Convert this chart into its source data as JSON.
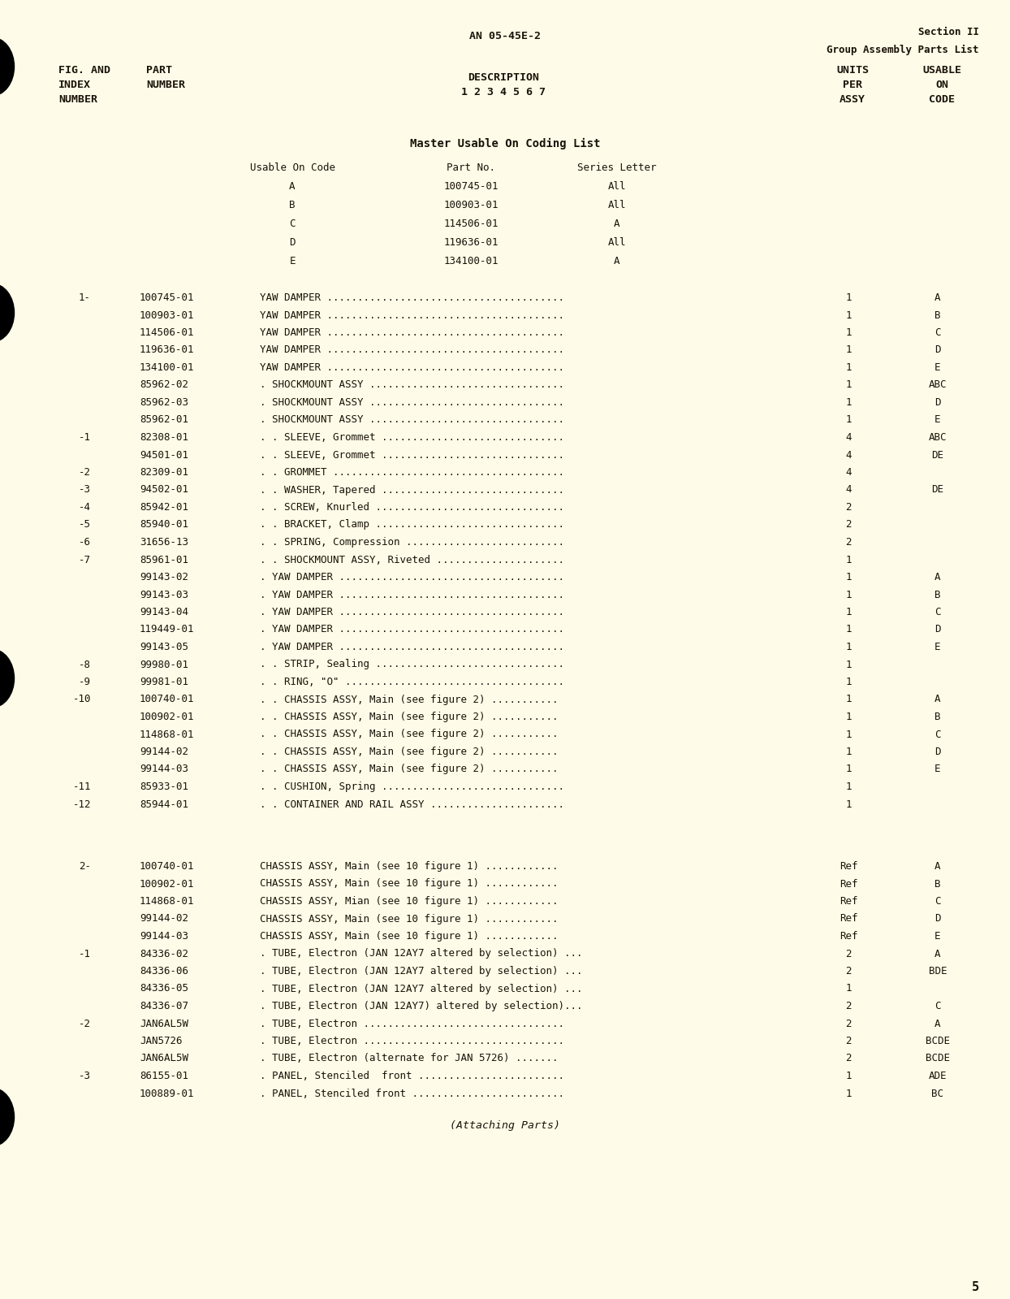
{
  "bg_color": "#FEFCE8",
  "text_color": "#1a1208",
  "header_center": "AN 05-45E-2",
  "header_right_line1": "Section II",
  "header_right_line2": "Group Assembly Parts List",
  "master_coding_title": "Master Usable On Coding List",
  "master_coding_headers": [
    "Usable On Code",
    "Part No.",
    "Series Letter"
  ],
  "master_coding_rows": [
    [
      "A",
      "100745-01",
      "All"
    ],
    [
      "B",
      "100903-01",
      "All"
    ],
    [
      "C",
      "114506-01",
      "A"
    ],
    [
      "D",
      "119636-01",
      "All"
    ],
    [
      "E",
      "134100-01",
      "A"
    ]
  ],
  "parts_rows": [
    [
      "1-",
      "100745-01",
      "YAW DAMPER .......................................",
      "1",
      "A"
    ],
    [
      "",
      "100903-01",
      "YAW DAMPER .......................................",
      "1",
      "B"
    ],
    [
      "",
      "114506-01",
      "YAW DAMPER .......................................",
      "1",
      "C"
    ],
    [
      "",
      "119636-01",
      "YAW DAMPER .......................................",
      "1",
      "D"
    ],
    [
      "",
      "134100-01",
      "YAW DAMPER .......................................",
      "1",
      "E"
    ],
    [
      "",
      "85962-02",
      ". SHOCKMOUNT ASSY ................................",
      "1",
      "ABC"
    ],
    [
      "",
      "85962-03",
      ". SHOCKMOUNT ASSY ................................",
      "1",
      "D"
    ],
    [
      "",
      "85962-01",
      ". SHOCKMOUNT ASSY ................................",
      "1",
      "E"
    ],
    [
      "-1",
      "82308-01",
      ". . SLEEVE, Grommet ..............................",
      "4",
      "ABC"
    ],
    [
      "",
      "94501-01",
      ". . SLEEVE, Grommet ..............................",
      "4",
      "DE"
    ],
    [
      "-2",
      "82309-01",
      ". . GROMMET ......................................",
      "4",
      ""
    ],
    [
      "-3",
      "94502-01",
      ". . WASHER, Tapered ..............................",
      "4",
      "DE"
    ],
    [
      "-4",
      "85942-01",
      ". . SCREW, Knurled ...............................",
      "2",
      ""
    ],
    [
      "-5",
      "85940-01",
      ". . BRACKET, Clamp ...............................",
      "2",
      ""
    ],
    [
      "-6",
      "31656-13",
      ". . SPRING, Compression ..........................",
      "2",
      ""
    ],
    [
      "-7",
      "85961-01",
      ". . SHOCKMOUNT ASSY, Riveted .....................",
      "1",
      ""
    ],
    [
      "",
      "99143-02",
      ". YAW DAMPER .....................................",
      "1",
      "A"
    ],
    [
      "",
      "99143-03",
      ". YAW DAMPER .....................................",
      "1",
      "B"
    ],
    [
      "",
      "99143-04",
      ". YAW DAMPER .....................................",
      "1",
      "C"
    ],
    [
      "",
      "119449-01",
      ". YAW DAMPER .....................................",
      "1",
      "D"
    ],
    [
      "",
      "99143-05",
      ". YAW DAMPER .....................................",
      "1",
      "E"
    ],
    [
      "-8",
      "99980-01",
      ". . STRIP, Sealing ...............................",
      "1",
      ""
    ],
    [
      "-9",
      "99981-01",
      ". . RING, \"O\" ....................................",
      "1",
      ""
    ],
    [
      "-10",
      "100740-01",
      ". . CHASSIS ASSY, Main (see figure 2) ...........",
      "1",
      "A"
    ],
    [
      "",
      "100902-01",
      ". . CHASSIS ASSY, Main (see figure 2) ...........",
      "1",
      "B"
    ],
    [
      "",
      "114868-01",
      ". . CHASSIS ASSY, Main (see figure 2) ...........",
      "1",
      "C"
    ],
    [
      "",
      "99144-02",
      ". . CHASSIS ASSY, Main (see figure 2) ...........",
      "1",
      "D"
    ],
    [
      "",
      "99144-03",
      ". . CHASSIS ASSY, Main (see figure 2) ...........",
      "1",
      "E"
    ],
    [
      "-11",
      "85933-01",
      ". . CUSHION, Spring ..............................",
      "1",
      ""
    ],
    [
      "-12",
      "85944-01",
      ". . CONTAINER AND RAIL ASSY ......................",
      "1",
      ""
    ]
  ],
  "parts_rows2": [
    [
      "2-",
      "100740-01",
      "CHASSIS ASSY, Main (see 10 figure 1) ............",
      "Ref",
      "A"
    ],
    [
      "",
      "100902-01",
      "CHASSIS ASSY, Main (see 10 figure 1) ............",
      "Ref",
      "B"
    ],
    [
      "",
      "114868-01",
      "CHASSIS ASSY, Mian (see 10 figure 1) ............",
      "Ref",
      "C"
    ],
    [
      "",
      "99144-02",
      "CHASSIS ASSY, Main (see 10 figure 1) ............",
      "Ref",
      "D"
    ],
    [
      "",
      "99144-03",
      "CHASSIS ASSY, Main (see 10 figure 1) ............",
      "Ref",
      "E"
    ],
    [
      "-1",
      "84336-02",
      ". TUBE, Electron (JAN 12AY7 altered by selection) ...",
      "2",
      "A"
    ],
    [
      "",
      "84336-06",
      ". TUBE, Electron (JAN 12AY7 altered by selection) ...",
      "2",
      "BDE"
    ],
    [
      "",
      "84336-05",
      ". TUBE, Electron (JAN 12AY7 altered by selection) ...",
      "1",
      ""
    ],
    [
      "",
      "84336-07",
      ". TUBE, Electron (JAN 12AY7) altered by selection)...",
      "2",
      "C"
    ],
    [
      "-2",
      "JAN6AL5W",
      ". TUBE, Electron .................................",
      "2",
      "A"
    ],
    [
      "",
      "JAN5726",
      ". TUBE, Electron .................................",
      "2",
      "BCDE"
    ],
    [
      "",
      "JAN6AL5W",
      ". TUBE, Electron (alternate for JAN 5726) .......",
      "2",
      "BCDE"
    ],
    [
      "-3",
      "86155-01",
      ". PANEL, Stenciled  front ........................",
      "1",
      "ADE"
    ],
    [
      "",
      "100889-01",
      ". PANEL, Stenciled front .........................",
      "1",
      "BC"
    ]
  ],
  "attaching_parts": "(Attaching Parts)",
  "page_number": "5"
}
